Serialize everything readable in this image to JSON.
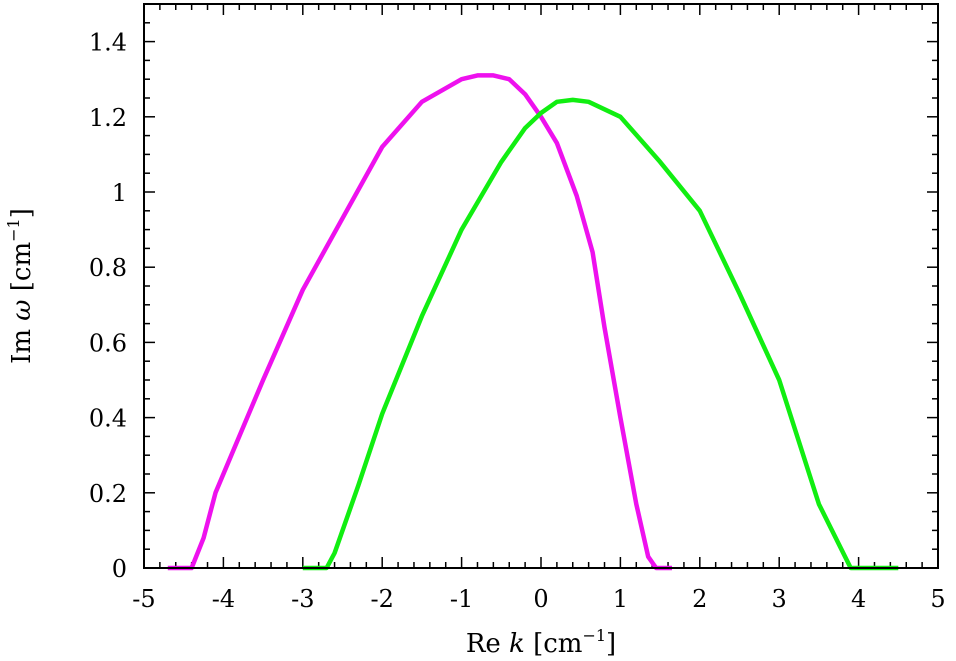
{
  "chart_data": {
    "type": "line",
    "xlabel": {
      "prefix": "Re ",
      "var": "k",
      "unit_open": " [cm",
      "unit_sup": "−1",
      "unit_close": "]"
    },
    "ylabel": {
      "prefix": "Im ",
      "var": "ω",
      "unit_open": " [cm",
      "unit_sup": "−1",
      "unit_close": "]"
    },
    "xlim": [
      -5,
      5
    ],
    "ylim": [
      0,
      1.5
    ],
    "xticks": [
      -5,
      -4,
      -3,
      -2,
      -1,
      0,
      1,
      2,
      3,
      4,
      5
    ],
    "xtick_labels": [
      "-5",
      "-4",
      "-3",
      "-2",
      "-1",
      "0",
      "1",
      "2",
      "3",
      "4",
      "5"
    ],
    "yticks": [
      0,
      0.2,
      0.4,
      0.6,
      0.8,
      1.0,
      1.2,
      1.4
    ],
    "ytick_labels": [
      "0",
      "0.2",
      "0.4",
      "0.6",
      "0.8",
      "1",
      "1.2",
      "1.4"
    ],
    "grid": false,
    "series": [
      {
        "color": "#ee11ee",
        "x": [
          -4.7,
          -4.4,
          -4.25,
          -4.1,
          -3.9,
          -3.5,
          -3.0,
          -2.5,
          -2.0,
          -1.5,
          -1.0,
          -0.8,
          -0.6,
          -0.4,
          -0.2,
          0.0,
          0.2,
          0.45,
          0.65,
          0.8,
          1.0,
          1.2,
          1.35,
          1.45,
          1.65
        ],
        "y": [
          0.0,
          0.0,
          0.08,
          0.2,
          0.3,
          0.5,
          0.74,
          0.93,
          1.12,
          1.24,
          1.3,
          1.31,
          1.31,
          1.3,
          1.26,
          1.2,
          1.13,
          0.99,
          0.84,
          0.64,
          0.4,
          0.17,
          0.03,
          0.0,
          0.0
        ]
      },
      {
        "color": "#11ee11",
        "x": [
          -3.0,
          -2.7,
          -2.6,
          -2.3,
          -2.0,
          -1.5,
          -1.0,
          -0.5,
          -0.2,
          0.0,
          0.2,
          0.4,
          0.6,
          1.0,
          1.5,
          2.0,
          2.5,
          3.0,
          3.5,
          3.9,
          4.1,
          4.5
        ],
        "y": [
          0.0,
          0.0,
          0.04,
          0.22,
          0.41,
          0.67,
          0.9,
          1.08,
          1.17,
          1.21,
          1.24,
          1.245,
          1.24,
          1.2,
          1.08,
          0.95,
          0.73,
          0.5,
          0.17,
          0.0,
          0.0,
          0.0
        ]
      }
    ]
  }
}
